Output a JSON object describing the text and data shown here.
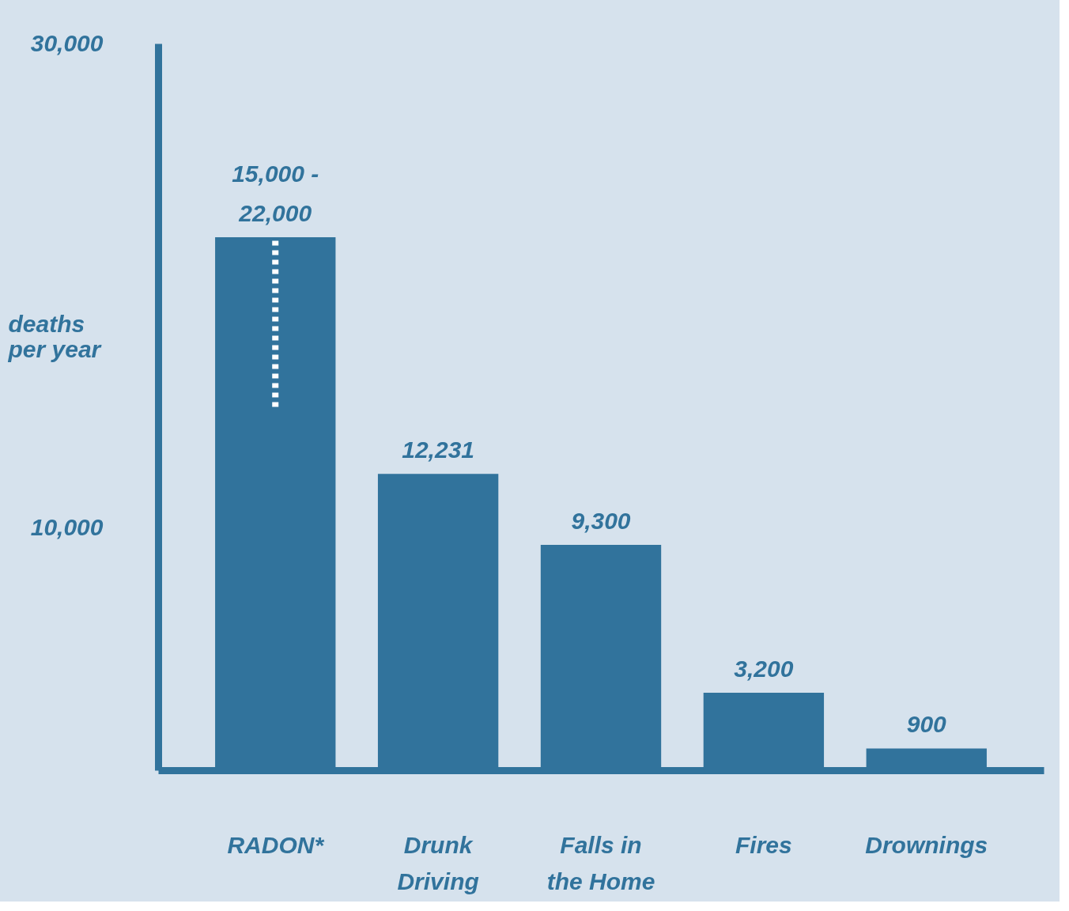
{
  "chart_data": {
    "type": "bar",
    "ylabel": "deaths\nper year",
    "categories": [
      "RADON*",
      "Drunk\nDriving",
      "Falls in\nthe Home",
      "Fires",
      "Drownings"
    ],
    "values": [
      22000,
      12231,
      9300,
      3200,
      900
    ],
    "value_labels": [
      "15,000 -\n22,000",
      "12,231",
      "9,300",
      "3,200",
      "900"
    ],
    "errors": [
      [
        15000,
        22000
      ],
      null,
      null,
      null,
      null
    ],
    "color": "#31739c",
    "ylim": [
      0,
      30000
    ],
    "yticks": [
      {
        "value": 10000,
        "label": "10,000"
      },
      {
        "value": 30000,
        "label": "30,000"
      }
    ],
    "grid": false
  }
}
